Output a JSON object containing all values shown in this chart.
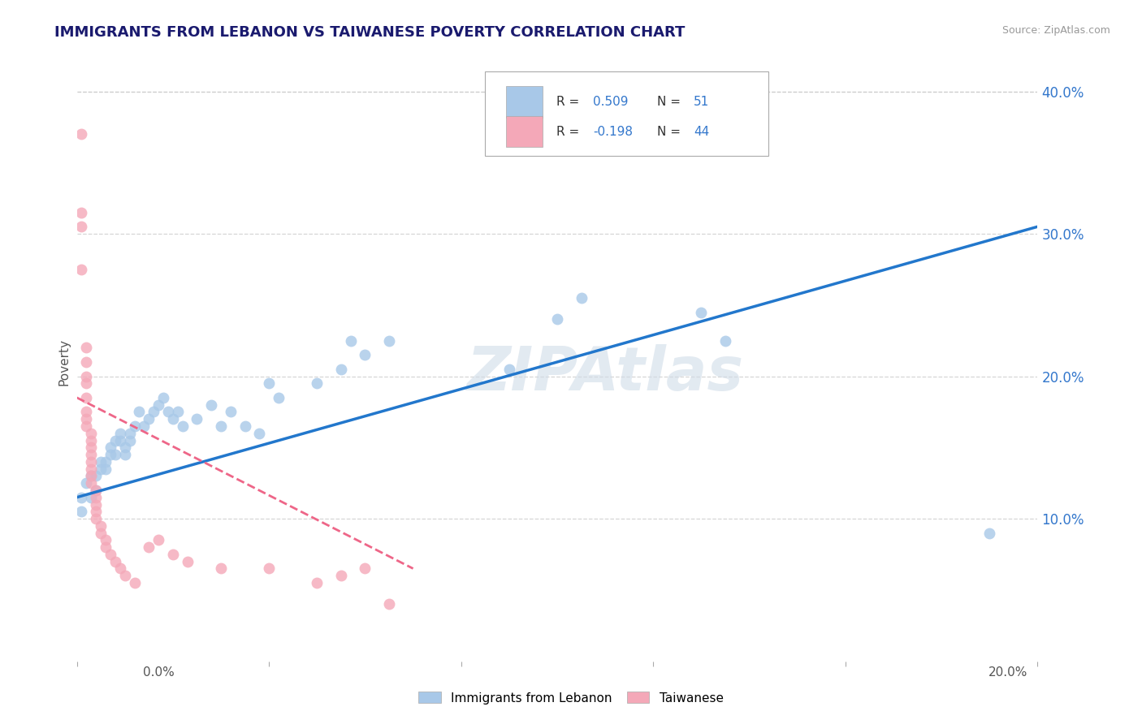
{
  "title": "IMMIGRANTS FROM LEBANON VS TAIWANESE POVERTY CORRELATION CHART",
  "source": "Source: ZipAtlas.com",
  "ylabel": "Poverty",
  "watermark": "ZIPAtlas",
  "legend_entries": [
    {
      "label": "Immigrants from Lebanon",
      "R": "0.509",
      "N": "51",
      "color": "#a8c8e8"
    },
    {
      "label": "Taiwanese",
      "R": "-0.198",
      "N": "44",
      "color": "#f4a8b8"
    }
  ],
  "blue_scatter": [
    [
      0.001,
      0.115
    ],
    [
      0.001,
      0.105
    ],
    [
      0.002,
      0.125
    ],
    [
      0.003,
      0.115
    ],
    [
      0.003,
      0.13
    ],
    [
      0.004,
      0.13
    ],
    [
      0.004,
      0.12
    ],
    [
      0.005,
      0.135
    ],
    [
      0.005,
      0.14
    ],
    [
      0.006,
      0.14
    ],
    [
      0.006,
      0.135
    ],
    [
      0.007,
      0.145
    ],
    [
      0.007,
      0.15
    ],
    [
      0.008,
      0.145
    ],
    [
      0.008,
      0.155
    ],
    [
      0.009,
      0.155
    ],
    [
      0.009,
      0.16
    ],
    [
      0.01,
      0.145
    ],
    [
      0.01,
      0.15
    ],
    [
      0.011,
      0.155
    ],
    [
      0.011,
      0.16
    ],
    [
      0.012,
      0.165
    ],
    [
      0.013,
      0.175
    ],
    [
      0.014,
      0.165
    ],
    [
      0.015,
      0.17
    ],
    [
      0.016,
      0.175
    ],
    [
      0.017,
      0.18
    ],
    [
      0.018,
      0.185
    ],
    [
      0.019,
      0.175
    ],
    [
      0.02,
      0.17
    ],
    [
      0.021,
      0.175
    ],
    [
      0.022,
      0.165
    ],
    [
      0.025,
      0.17
    ],
    [
      0.028,
      0.18
    ],
    [
      0.03,
      0.165
    ],
    [
      0.032,
      0.175
    ],
    [
      0.035,
      0.165
    ],
    [
      0.038,
      0.16
    ],
    [
      0.04,
      0.195
    ],
    [
      0.042,
      0.185
    ],
    [
      0.05,
      0.195
    ],
    [
      0.055,
      0.205
    ],
    [
      0.057,
      0.225
    ],
    [
      0.06,
      0.215
    ],
    [
      0.065,
      0.225
    ],
    [
      0.09,
      0.205
    ],
    [
      0.1,
      0.24
    ],
    [
      0.105,
      0.255
    ],
    [
      0.13,
      0.245
    ],
    [
      0.135,
      0.225
    ],
    [
      0.19,
      0.09
    ]
  ],
  "pink_scatter": [
    [
      0.001,
      0.37
    ],
    [
      0.001,
      0.315
    ],
    [
      0.001,
      0.305
    ],
    [
      0.001,
      0.275
    ],
    [
      0.002,
      0.22
    ],
    [
      0.002,
      0.21
    ],
    [
      0.002,
      0.2
    ],
    [
      0.002,
      0.195
    ],
    [
      0.002,
      0.185
    ],
    [
      0.002,
      0.175
    ],
    [
      0.002,
      0.17
    ],
    [
      0.002,
      0.165
    ],
    [
      0.003,
      0.16
    ],
    [
      0.003,
      0.155
    ],
    [
      0.003,
      0.15
    ],
    [
      0.003,
      0.145
    ],
    [
      0.003,
      0.14
    ],
    [
      0.003,
      0.135
    ],
    [
      0.003,
      0.13
    ],
    [
      0.003,
      0.125
    ],
    [
      0.004,
      0.12
    ],
    [
      0.004,
      0.115
    ],
    [
      0.004,
      0.11
    ],
    [
      0.004,
      0.105
    ],
    [
      0.004,
      0.1
    ],
    [
      0.005,
      0.095
    ],
    [
      0.005,
      0.09
    ],
    [
      0.006,
      0.085
    ],
    [
      0.006,
      0.08
    ],
    [
      0.007,
      0.075
    ],
    [
      0.008,
      0.07
    ],
    [
      0.009,
      0.065
    ],
    [
      0.01,
      0.06
    ],
    [
      0.012,
      0.055
    ],
    [
      0.015,
      0.08
    ],
    [
      0.017,
      0.085
    ],
    [
      0.02,
      0.075
    ],
    [
      0.023,
      0.07
    ],
    [
      0.03,
      0.065
    ],
    [
      0.04,
      0.065
    ],
    [
      0.05,
      0.055
    ],
    [
      0.055,
      0.06
    ],
    [
      0.06,
      0.065
    ],
    [
      0.065,
      0.04
    ]
  ],
  "xlim": [
    0.0,
    0.2
  ],
  "ylim": [
    0.0,
    0.42
  ],
  "yticks": [
    0.1,
    0.2,
    0.3,
    0.4
  ],
  "ytick_labels": [
    "10.0%",
    "20.0%",
    "30.0%",
    "40.0%"
  ],
  "xtick_positions": [
    0.0,
    0.04,
    0.08,
    0.12,
    0.16,
    0.2
  ],
  "blue_line_x": [
    0.0,
    0.2
  ],
  "blue_line_y": [
    0.115,
    0.305
  ],
  "pink_line_x": [
    0.0,
    0.07
  ],
  "pink_line_y": [
    0.185,
    0.065
  ],
  "dot_size": 100,
  "background_color": "#ffffff",
  "grid_color": "#cccccc",
  "blue_color": "#a8c8e8",
  "pink_color": "#f4a8b8",
  "blue_line_color": "#2277cc",
  "pink_line_color": "#ee6688",
  "title_color": "#1a1a6e",
  "ylabel_color": "#555555",
  "tick_label_color": "#3377cc"
}
